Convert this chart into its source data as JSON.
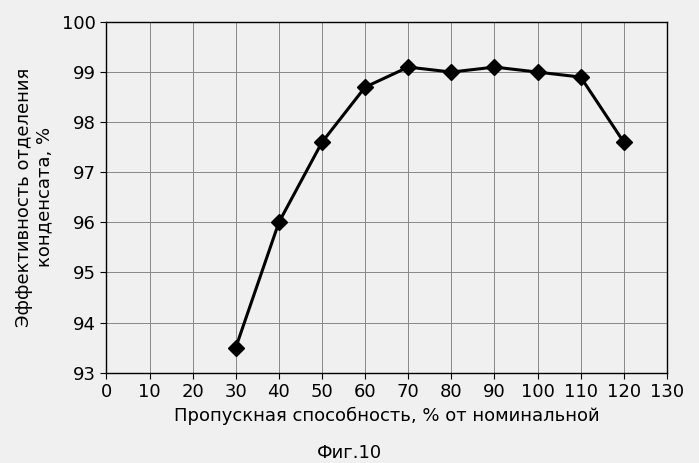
{
  "x": [
    30,
    40,
    50,
    60,
    70,
    80,
    90,
    100,
    110,
    120
  ],
  "y": [
    93.5,
    96.0,
    97.6,
    98.7,
    99.1,
    99.0,
    99.1,
    99.0,
    98.9,
    97.6
  ],
  "xlabel": "Пропускная способность, % от номинальной",
  "ylabel_line1": "Эффективность отделения",
  "ylabel_line2": "конденсата, %",
  "caption": "Фиг.10",
  "xlim": [
    0,
    130
  ],
  "ylim": [
    93,
    100
  ],
  "xticks": [
    0,
    10,
    20,
    30,
    40,
    50,
    60,
    70,
    80,
    90,
    100,
    110,
    120,
    130
  ],
  "yticks": [
    93,
    94,
    95,
    96,
    97,
    98,
    99,
    100
  ],
  "line_color": "#000000",
  "marker": "D",
  "marker_size": 8,
  "line_width": 2.2,
  "bg_color": "#f0f0f0",
  "plot_bg_color": "#f0f0f0",
  "grid_color": "#888888",
  "font_size_ylabel": 13,
  "font_size_xlabel": 13,
  "font_size_ticks": 13,
  "font_size_caption": 13
}
